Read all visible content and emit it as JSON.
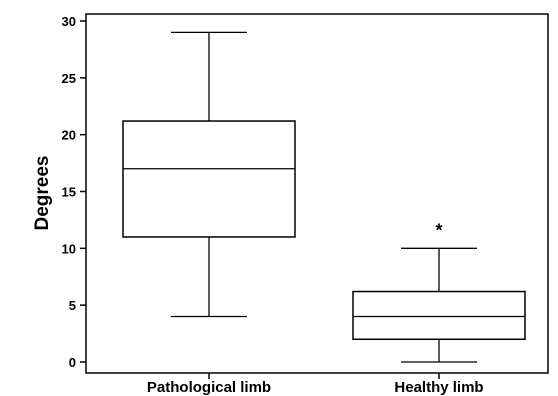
{
  "chart_data": {
    "type": "boxplot",
    "ylabel": "Degrees",
    "ylim": [
      0,
      30
    ],
    "yticks": [
      0,
      5,
      10,
      15,
      20,
      25,
      30
    ],
    "categories": [
      "Pathological limb",
      "Healthy limb"
    ],
    "boxes": [
      {
        "category": "Pathological limb",
        "min": 4,
        "q1": 11,
        "median": 17,
        "q3": 21.2,
        "max": 29,
        "outliers": []
      },
      {
        "category": "Healthy limb",
        "min": 0,
        "q1": 2,
        "median": 4,
        "q3": 6.2,
        "max": 10,
        "outliers": [
          {
            "value": 12,
            "marker": "*"
          }
        ]
      }
    ]
  }
}
